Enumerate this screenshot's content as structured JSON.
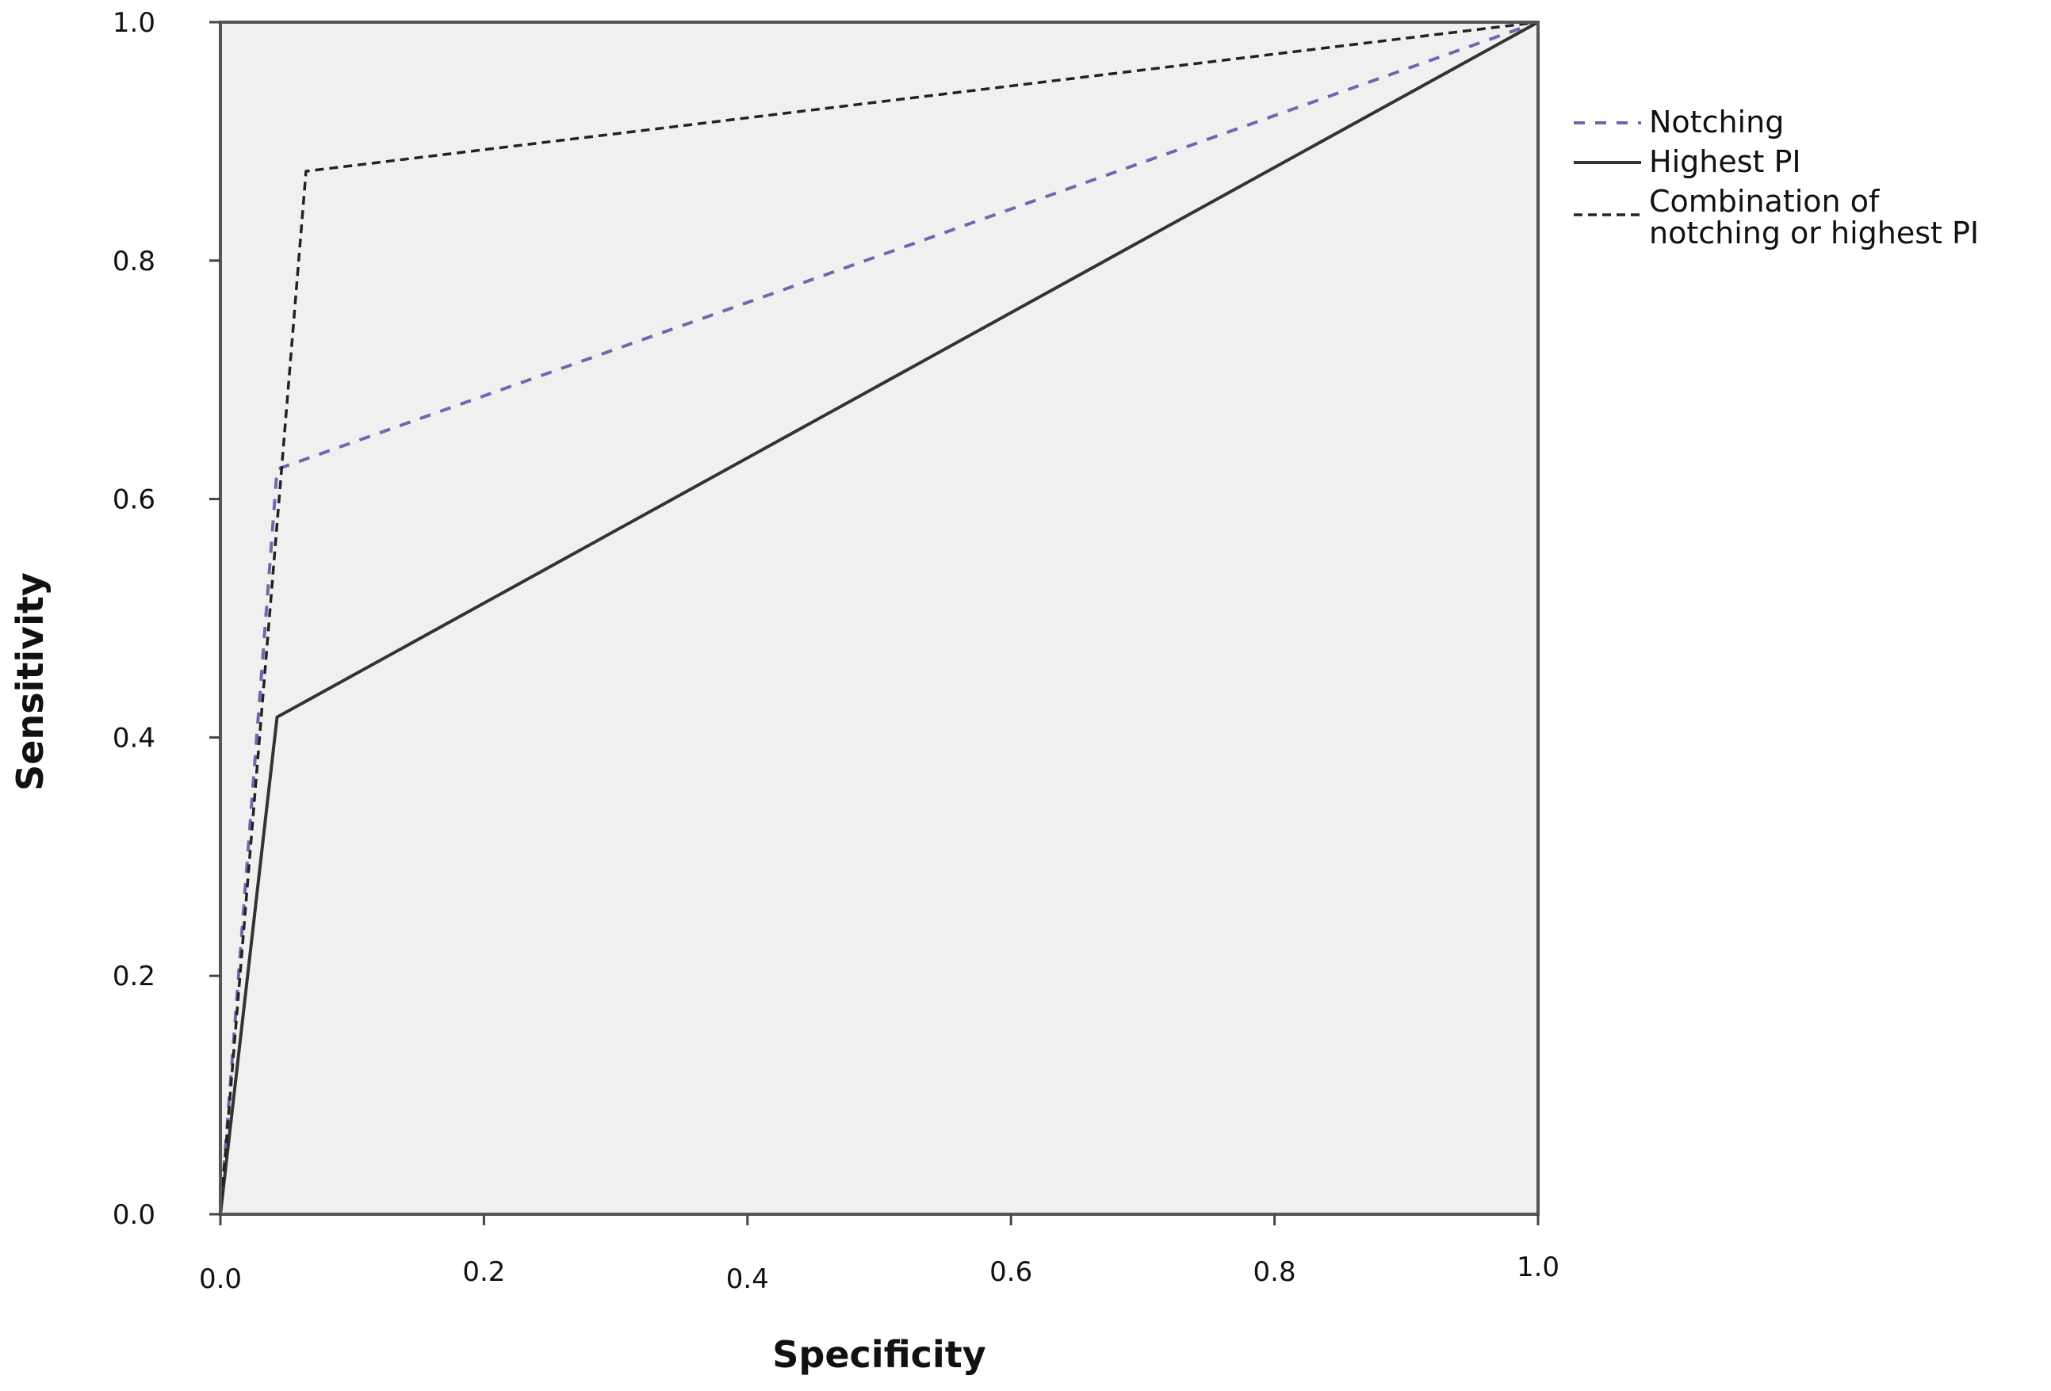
{
  "chart_data": {
    "type": "line",
    "title": "",
    "xlabel": "Specificity",
    "ylabel": "Sensitivity",
    "xlim": [
      0,
      1
    ],
    "ylim": [
      0,
      1
    ],
    "x_ticks": [
      "0.0",
      "0.2",
      "0.4",
      "0.6",
      "0.8",
      "1.0"
    ],
    "y_ticks": [
      "0.0",
      "0.2",
      "0.4",
      "0.6",
      "0.8",
      "1.0"
    ],
    "grid": false,
    "legend_position": "right",
    "series": [
      {
        "name": "Notching",
        "style": "short-dash",
        "color": "#6a6ab0",
        "points": [
          [
            0,
            0
          ],
          [
            0.043,
            0.625
          ],
          [
            1,
            1
          ]
        ]
      },
      {
        "name": "Highest PI",
        "style": "solid",
        "color": "#333333",
        "points": [
          [
            0,
            0
          ],
          [
            0.043,
            0.417
          ],
          [
            1,
            1
          ]
        ]
      },
      {
        "name": "Combination of notching or highest PI",
        "legend_lines": [
          "Combination of",
          "notching or highest PI"
        ],
        "style": "dash",
        "color": "#222222",
        "points": [
          [
            0,
            0
          ],
          [
            0.065,
            0.875
          ],
          [
            1,
            1
          ]
        ]
      }
    ],
    "colors": {
      "plot_background": "#f0f0f0",
      "frame": "#555555"
    }
  }
}
